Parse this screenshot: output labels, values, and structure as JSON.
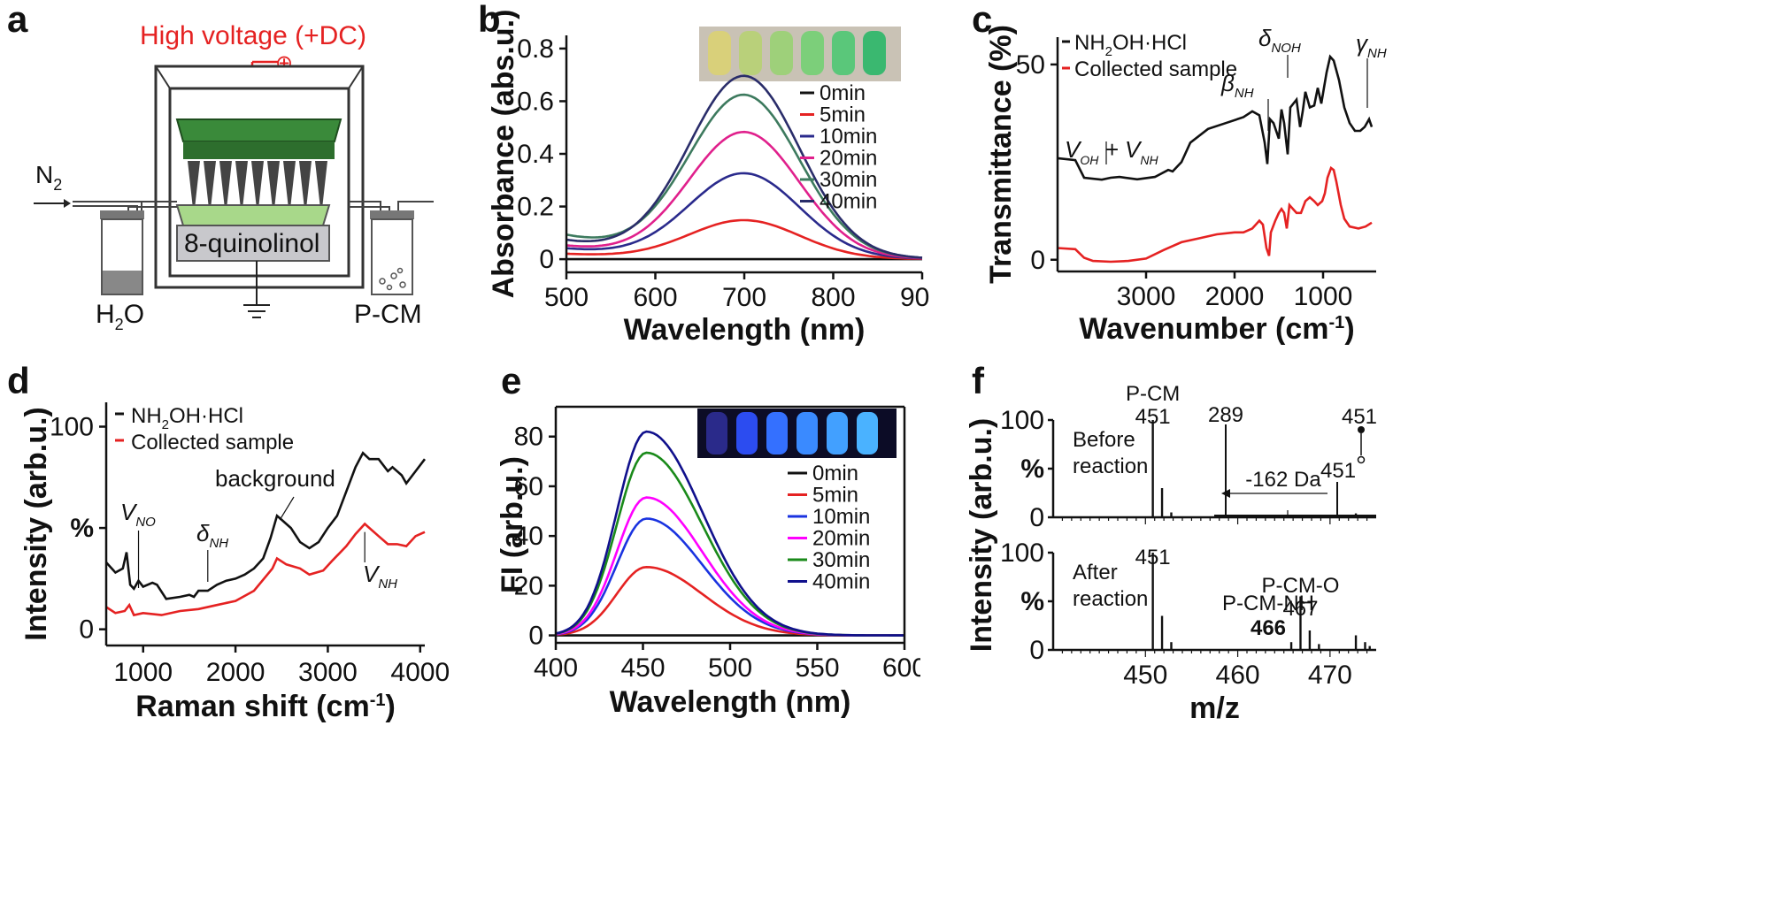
{
  "panels": {
    "a": {
      "label": "a",
      "hv": "High voltage (+DC)",
      "plus": "⊕",
      "n2": "N",
      "n2_sub": "2",
      "solution": "8-quinolinol",
      "h2o_h": "H",
      "h2o_sub": "2",
      "h2o_o": "O",
      "pcm": "P-CM"
    },
    "b": {
      "label": "b"
    },
    "c": {
      "label": "c"
    },
    "d": {
      "label": "d"
    },
    "e": {
      "label": "e"
    },
    "f": {
      "label": "f"
    }
  },
  "colors": {
    "black": "#111111",
    "red": "#e52222",
    "navy": "#2a2a8c",
    "magenta": "#e0208c",
    "teal": "#3d7a5e",
    "darknavy": "#2a2d6a",
    "blue": "#1a33e0",
    "pink": "#ff00ff",
    "green": "#1a8a1a",
    "darkblue": "#10108c"
  },
  "chart_data": [
    {
      "id": "b",
      "type": "line",
      "xlabel": "Wavelength (nm)",
      "ylabel": "Absorbance (abs.u.)",
      "xlim": [
        500,
        900
      ],
      "ylim": [
        -0.05,
        0.85
      ],
      "xticks": [
        500,
        600,
        700,
        800,
        900
      ],
      "yticks": [
        "0",
        "0.2",
        "0.4",
        "0.6",
        "0.8"
      ],
      "ytick_values": [
        0,
        0.2,
        0.4,
        0.6,
        0.8
      ],
      "inset": "photo of six vials, yellow to green",
      "series": [
        {
          "name": "0min",
          "color": "#111111",
          "peak": 0.0,
          "base": 0.0
        },
        {
          "name": "5min",
          "color": "#e52222",
          "peak": 0.145,
          "base": 0.02
        },
        {
          "name": "10min",
          "color": "#2a2a8c",
          "peak": 0.32,
          "base": 0.04
        },
        {
          "name": "20min",
          "color": "#e0208c",
          "peak": 0.475,
          "base": 0.05
        },
        {
          "name": "30min",
          "color": "#3d7a5e",
          "peak": 0.61,
          "base": 0.09
        },
        {
          "name": "40min",
          "color": "#2a2d6a",
          "peak": 0.685,
          "base": 0.07
        }
      ],
      "peak_x": 700
    },
    {
      "id": "c",
      "type": "line",
      "xlabel": "Wavenumber (cm",
      "xlabel_sup": "-1",
      "xlabel_end": ")",
      "ylabel": "Transmittance (%)",
      "xlim": [
        4000,
        400
      ],
      "ylim": [
        -3,
        57
      ],
      "xticks": [
        3000,
        2000,
        1000
      ],
      "yticks": [
        "0",
        "50"
      ],
      "ytick_values": [
        0,
        50
      ],
      "series": [
        {
          "name": "NH2OH·HCl",
          "legend_main": "NH",
          "legend_sub": "2",
          "legend_rest": "OH·HCl",
          "color": "#111111",
          "points": [
            [
              4000,
              26
            ],
            [
              3800,
              25.5
            ],
            [
              3700,
              21
            ],
            [
              3500,
              20.5
            ],
            [
              3400,
              21
            ],
            [
              3300,
              21.2
            ],
            [
              3100,
              20.6
            ],
            [
              2900,
              21.2
            ],
            [
              2750,
              23
            ],
            [
              2700,
              22.6
            ],
            [
              2600,
              25
            ],
            [
              2500,
              30
            ],
            [
              2300,
              33.5
            ],
            [
              2100,
              35
            ],
            [
              1900,
              36.5
            ],
            [
              1800,
              38
            ],
            [
              1720,
              37
            ],
            [
              1660,
              30
            ],
            [
              1630,
              24.5
            ],
            [
              1600,
              36
            ],
            [
              1560,
              35
            ],
            [
              1500,
              31
            ],
            [
              1470,
              38.5
            ],
            [
              1440,
              35
            ],
            [
              1400,
              27
            ],
            [
              1370,
              39
            ],
            [
              1300,
              41
            ],
            [
              1260,
              34
            ],
            [
              1230,
              38
            ],
            [
              1200,
              43
            ],
            [
              1150,
              39
            ],
            [
              1100,
              39.5
            ],
            [
              1060,
              44
            ],
            [
              1020,
              40
            ],
            [
              990,
              44
            ],
            [
              960,
              48
            ],
            [
              920,
              52
            ],
            [
              880,
              51
            ],
            [
              820,
              46
            ],
            [
              760,
              39
            ],
            [
              700,
              35
            ],
            [
              640,
              33
            ],
            [
              580,
              33
            ],
            [
              530,
              34
            ],
            [
              480,
              36
            ],
            [
              450,
              34
            ]
          ]
        },
        {
          "name": "Collected sample",
          "color": "#e52222",
          "points": [
            [
              4000,
              3
            ],
            [
              3800,
              2.7
            ],
            [
              3700,
              0.5
            ],
            [
              3600,
              -0.3
            ],
            [
              3400,
              -0.5
            ],
            [
              3200,
              -0.3
            ],
            [
              3000,
              0.3
            ],
            [
              2800,
              2.5
            ],
            [
              2600,
              4.5
            ],
            [
              2400,
              5.5
            ],
            [
              2200,
              6.5
            ],
            [
              2000,
              7
            ],
            [
              1900,
              7
            ],
            [
              1800,
              8
            ],
            [
              1720,
              10
            ],
            [
              1680,
              9
            ],
            [
              1640,
              3
            ],
            [
              1610,
              1
            ],
            [
              1590,
              7
            ],
            [
              1540,
              10
            ],
            [
              1500,
              12
            ],
            [
              1470,
              13
            ],
            [
              1440,
              12
            ],
            [
              1410,
              8
            ],
            [
              1380,
              14
            ],
            [
              1300,
              12
            ],
            [
              1250,
              12
            ],
            [
              1200,
              15
            ],
            [
              1150,
              16
            ],
            [
              1100,
              15
            ],
            [
              1060,
              14
            ],
            [
              1010,
              15
            ],
            [
              980,
              17
            ],
            [
              950,
              21
            ],
            [
              910,
              23.5
            ],
            [
              880,
              23
            ],
            [
              850,
              20
            ],
            [
              800,
              14
            ],
            [
              760,
              10.5
            ],
            [
              700,
              8.5
            ],
            [
              600,
              8
            ],
            [
              520,
              8.5
            ],
            [
              450,
              9.5
            ]
          ]
        }
      ],
      "annotations": {
        "vohvnh_a": "V",
        "vohvnh_a_sub": "OH",
        "vohvnh_plus": " + ",
        "vohvnh_b": "V",
        "vohvnh_b_sub": "NH",
        "beta": "β",
        "beta_sub": "NH",
        "delta": "δ",
        "delta_sub": "NOH",
        "gamma": "γ",
        "gamma_sub": "NH"
      }
    },
    {
      "id": "d",
      "type": "line",
      "xlabel": "Raman shift (cm",
      "xlabel_sup": "-1",
      "xlabel_end": ")",
      "ylabel": "Intensity (arb.u.)",
      "xlim": [
        600,
        4050
      ],
      "ylim": [
        -8,
        112
      ],
      "xticks": [
        1000,
        2000,
        3000,
        4000
      ],
      "yticks": [
        "0",
        "%",
        "100"
      ],
      "ytick_values": [
        0,
        50,
        100
      ],
      "series": [
        {
          "name": "NH2OH·HCl",
          "legend_main": "NH",
          "legend_sub": "2",
          "legend_rest": "OH·HCl",
          "color": "#111111",
          "points": [
            [
              600,
              33
            ],
            [
              700,
              28
            ],
            [
              780,
              30
            ],
            [
              820,
              38
            ],
            [
              860,
              22
            ],
            [
              900,
              20
            ],
            [
              950,
              24
            ],
            [
              1000,
              21
            ],
            [
              1100,
              23
            ],
            [
              1150,
              22
            ],
            [
              1250,
              15
            ],
            [
              1400,
              16
            ],
            [
              1500,
              17
            ],
            [
              1550,
              16
            ],
            [
              1600,
              19
            ],
            [
              1700,
              19
            ],
            [
              1800,
              22
            ],
            [
              1900,
              24
            ],
            [
              2000,
              25
            ],
            [
              2100,
              27
            ],
            [
              2200,
              30
            ],
            [
              2300,
              35
            ],
            [
              2380,
              45
            ],
            [
              2450,
              56
            ],
            [
              2500,
              54
            ],
            [
              2600,
              50
            ],
            [
              2700,
              43
            ],
            [
              2800,
              40
            ],
            [
              2900,
              43
            ],
            [
              3000,
              50
            ],
            [
              3100,
              56
            ],
            [
              3200,
              68
            ],
            [
              3300,
              80
            ],
            [
              3380,
              87
            ],
            [
              3450,
              84
            ],
            [
              3550,
              84
            ],
            [
              3650,
              78
            ],
            [
              3700,
              80
            ],
            [
              3800,
              76
            ],
            [
              3850,
              72
            ],
            [
              3950,
              78
            ],
            [
              4050,
              84
            ]
          ]
        },
        {
          "name": "Collected sample",
          "color": "#e52222",
          "points": [
            [
              600,
              11
            ],
            [
              700,
              8
            ],
            [
              800,
              9
            ],
            [
              850,
              12
            ],
            [
              900,
              7
            ],
            [
              1000,
              8
            ],
            [
              1200,
              7
            ],
            [
              1400,
              9
            ],
            [
              1600,
              10
            ],
            [
              1800,
              12
            ],
            [
              2000,
              14
            ],
            [
              2200,
              19
            ],
            [
              2400,
              30
            ],
            [
              2450,
              35
            ],
            [
              2550,
              32
            ],
            [
              2700,
              30
            ],
            [
              2800,
              27
            ],
            [
              2950,
              29
            ],
            [
              3050,
              34
            ],
            [
              3200,
              41
            ],
            [
              3300,
              47
            ],
            [
              3400,
              52
            ],
            [
              3450,
              50
            ],
            [
              3550,
              46
            ],
            [
              3650,
              42
            ],
            [
              3750,
              42
            ],
            [
              3850,
              41
            ],
            [
              3950,
              46
            ],
            [
              4050,
              48
            ]
          ]
        }
      ],
      "annotations": {
        "vno": "V",
        "vno_sub": "NO",
        "dnh": "δ",
        "dnh_sub": "NH",
        "background": "background",
        "vnh": "V",
        "vnh_sub": "NH"
      }
    },
    {
      "id": "e",
      "type": "line",
      "xlabel": "Wavelength (nm)",
      "ylabel": "FI (arb.u.)",
      "xlim": [
        400,
        600
      ],
      "ylim": [
        -3,
        92
      ],
      "xticks": [
        400,
        450,
        500,
        550,
        600
      ],
      "yticks": [
        "0",
        "20",
        "40",
        "60",
        "80"
      ],
      "ytick_values": [
        0,
        20,
        40,
        60,
        80
      ],
      "inset": "photo of six vials under UV, blue fluorescence",
      "peak_x": 452,
      "series": [
        {
          "name": "0min",
          "color": "#111111",
          "peak": 0
        },
        {
          "name": "5min",
          "color": "#e52222",
          "peak": 27.5
        },
        {
          "name": "10min",
          "color": "#1a33e0",
          "peak": 47
        },
        {
          "name": "20min",
          "color": "#ff00ff",
          "peak": 55.5
        },
        {
          "name": "30min",
          "color": "#1a8a1a",
          "peak": 73.5
        },
        {
          "name": "40min",
          "color": "#10108c",
          "peak": 82
        }
      ]
    },
    {
      "id": "f",
      "type": "bar",
      "xlabel": "m/z",
      "ylabel": "Intensity (arb.u.)",
      "xlim": [
        440,
        475
      ],
      "xticks": [
        450,
        460,
        470
      ],
      "subplots": [
        {
          "name": "Before reaction",
          "yticks": [
            "0",
            "%",
            "100"
          ],
          "ytick_values": [
            0,
            50,
            100
          ],
          "text1": "Before",
          "text2": "reaction",
          "peaks": [
            [
              450.8,
              100
            ],
            [
              451.8,
              30
            ],
            [
              452.8,
              5
            ],
            [
              472.8,
              4
            ],
            [
              473.8,
              2
            ]
          ],
          "labels": {
            "pcm": "P-CM",
            "m451": "451"
          },
          "inset": {
            "m289": "289",
            "m451_top": "451",
            "m451_right": "451",
            "loss": "-162 Da"
          }
        },
        {
          "name": "After reaction",
          "yticks": [
            "0",
            "%",
            "100"
          ],
          "ytick_values": [
            0,
            50,
            100
          ],
          "text1": "After",
          "text2": "reaction",
          "peaks": [
            [
              450.8,
              100
            ],
            [
              451.8,
              35
            ],
            [
              452.8,
              8
            ],
            [
              465.8,
              8
            ],
            [
              466.8,
              55
            ],
            [
              467.8,
              20
            ],
            [
              468.8,
              6
            ],
            [
              472.8,
              15
            ],
            [
              473.8,
              8
            ],
            [
              474.3,
              4
            ]
          ],
          "labels": {
            "m451": "451",
            "pcmo": "P-CM-O",
            "m467": "467",
            "pcmnh": "P-CM-NH",
            "m466": "466"
          }
        }
      ]
    }
  ]
}
